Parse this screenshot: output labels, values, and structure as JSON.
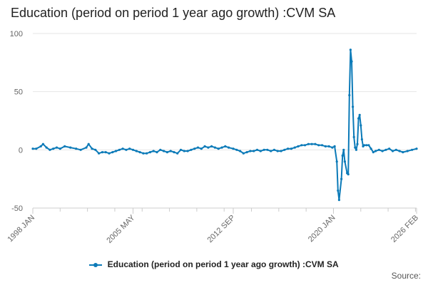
{
  "chart_data": {
    "type": "line",
    "title": "Education (period on period 1 year ago growth) :CVM SA",
    "xlabel": "",
    "ylabel": "",
    "ylim": [
      -50,
      100
    ],
    "yticks": [
      "100",
      "50",
      "0",
      "-50"
    ],
    "xticks": [
      "1998 JAN",
      "2005 MAY",
      "2012 SEP",
      "2020 JAN",
      "2026 FEB"
    ],
    "grid": "horizontal",
    "legend_position": "bottom",
    "colors": {
      "series": "#0b7ab8",
      "grid": "#e6e6e6",
      "axis": "#cccccc"
    },
    "series": [
      {
        "name": "Education (period on period 1 year ago growth) :CVM SA",
        "points": [
          [
            "1998 JAN",
            1
          ],
          [
            "1998 APR",
            1
          ],
          [
            "1998 AUG",
            3
          ],
          [
            "1998 OCT",
            5
          ],
          [
            "1999 JAN",
            2
          ],
          [
            "1999 APR",
            0
          ],
          [
            "1999 JUL",
            1
          ],
          [
            "1999 OCT",
            2
          ],
          [
            "2000 JAN",
            1
          ],
          [
            "2000 MAY",
            3
          ],
          [
            "2000 OCT",
            2
          ],
          [
            "2001 MAR",
            1
          ],
          [
            "2001 JUL",
            0
          ],
          [
            "2001 DEC",
            2
          ],
          [
            "2002 FEB",
            5
          ],
          [
            "2002 MAY",
            1
          ],
          [
            "2002 AUG",
            0
          ],
          [
            "2002 NOV",
            -3
          ],
          [
            "2003 FEB",
            -2
          ],
          [
            "2003 MAY",
            -2
          ],
          [
            "2003 AUG",
            -3
          ],
          [
            "2003 NOV",
            -2
          ],
          [
            "2004 FEB",
            -1
          ],
          [
            "2004 MAY",
            0
          ],
          [
            "2004 AUG",
            1
          ],
          [
            "2004 NOV",
            0
          ],
          [
            "2005 FEB",
            1
          ],
          [
            "2005 MAY",
            0
          ],
          [
            "2005 AUG",
            -1
          ],
          [
            "2005 NOV",
            -2
          ],
          [
            "2006 FEB",
            -3
          ],
          [
            "2006 MAY",
            -3
          ],
          [
            "2006 AUG",
            -2
          ],
          [
            "2006 NOV",
            -1
          ],
          [
            "2007 FEB",
            -2
          ],
          [
            "2007 MAY",
            0
          ],
          [
            "2007 AUG",
            -1
          ],
          [
            "2007 NOV",
            -2
          ],
          [
            "2008 FEB",
            -1
          ],
          [
            "2008 MAY",
            -2
          ],
          [
            "2008 AUG",
            -3
          ],
          [
            "2008 NOV",
            0
          ],
          [
            "2009 FEB",
            -1
          ],
          [
            "2009 MAY",
            -1
          ],
          [
            "2009 AUG",
            0
          ],
          [
            "2009 NOV",
            1
          ],
          [
            "2010 FEB",
            2
          ],
          [
            "2010 MAY",
            1
          ],
          [
            "2010 AUG",
            3
          ],
          [
            "2010 NOV",
            2
          ],
          [
            "2011 FEB",
            3
          ],
          [
            "2011 MAY",
            2
          ],
          [
            "2011 AUG",
            1
          ],
          [
            "2011 NOV",
            2
          ],
          [
            "2012 FEB",
            3
          ],
          [
            "2012 MAY",
            2
          ],
          [
            "2012 SEP",
            1
          ],
          [
            "2012 DEC",
            0
          ],
          [
            "2013 MAR",
            -1
          ],
          [
            "2013 JUN",
            -3
          ],
          [
            "2013 SEP",
            -2
          ],
          [
            "2013 DEC",
            -1
          ],
          [
            "2014 MAR",
            -1
          ],
          [
            "2014 JUN",
            0
          ],
          [
            "2014 SEP",
            -1
          ],
          [
            "2014 DEC",
            0
          ],
          [
            "2015 MAR",
            0
          ],
          [
            "2015 JUN",
            -1
          ],
          [
            "2015 SEP",
            0
          ],
          [
            "2015 DEC",
            -1
          ],
          [
            "2016 MAR",
            -1
          ],
          [
            "2016 JUN",
            0
          ],
          [
            "2016 SEP",
            1
          ],
          [
            "2016 DEC",
            1
          ],
          [
            "2017 MAR",
            2
          ],
          [
            "2017 JUN",
            3
          ],
          [
            "2017 SEP",
            4
          ],
          [
            "2017 DEC",
            4
          ],
          [
            "2018 MAR",
            5
          ],
          [
            "2018 JUN",
            5
          ],
          [
            "2018 SEP",
            5
          ],
          [
            "2018 DEC",
            4
          ],
          [
            "2019 MAR",
            4
          ],
          [
            "2019 JUN",
            3
          ],
          [
            "2019 SEP",
            3
          ],
          [
            "2019 DEC",
            2
          ],
          [
            "2020 FEB",
            3
          ],
          [
            "2020 APR",
            -10
          ],
          [
            "2020 MAY",
            -35
          ],
          [
            "2020 JUN",
            -43
          ],
          [
            "2020 AUG",
            -25
          ],
          [
            "2020 SEP",
            -5
          ],
          [
            "2020 OCT",
            0
          ],
          [
            "2020 NOV",
            -10
          ],
          [
            "2021 JAN",
            -20
          ],
          [
            "2021 FEB",
            -21
          ],
          [
            "2021 MAR",
            47
          ],
          [
            "2021 APR",
            86
          ],
          [
            "2021 MAY",
            76
          ],
          [
            "2021 JUN",
            37
          ],
          [
            "2021 JUL",
            11
          ],
          [
            "2021 AUG",
            2
          ],
          [
            "2021 SEP",
            0
          ],
          [
            "2021 OCT",
            5
          ],
          [
            "2021 NOV",
            27
          ],
          [
            "2021 DEC",
            30
          ],
          [
            "2022 JAN",
            21
          ],
          [
            "2022 FEB",
            9
          ],
          [
            "2022 MAR",
            3
          ],
          [
            "2022 APR",
            4
          ],
          [
            "2022 JUN",
            4
          ],
          [
            "2022 AUG",
            4
          ],
          [
            "2022 OCT",
            1
          ],
          [
            "2022 DEC",
            -2
          ],
          [
            "2023 FEB",
            -1
          ],
          [
            "2023 MAY",
            0
          ],
          [
            "2023 AUG",
            -1
          ],
          [
            "2023 NOV",
            0
          ],
          [
            "2024 FEB",
            1
          ],
          [
            "2024 MAY",
            -1
          ],
          [
            "2024 AUG",
            0
          ],
          [
            "2024 NOV",
            -1
          ],
          [
            "2025 FEB",
            -2
          ],
          [
            "2025 JUN",
            -1
          ],
          [
            "2025 OCT",
            0
          ],
          [
            "2026 FEB",
            1
          ]
        ]
      }
    ]
  },
  "credit": "Source:"
}
